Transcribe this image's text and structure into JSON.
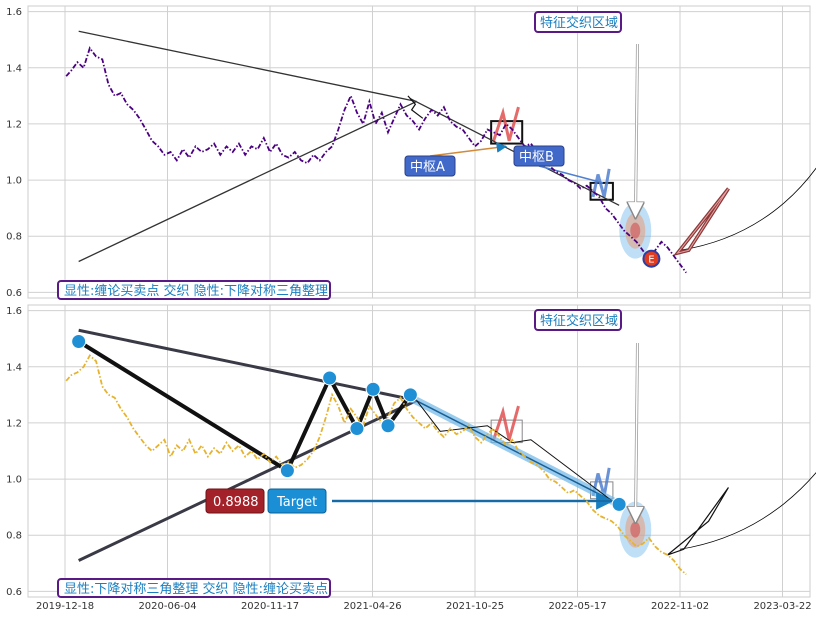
{
  "chart_data": [
    {
      "type": "line",
      "x_ticks": [
        "2019-12-18",
        "2020-06-04",
        "2020-11-17",
        "2021-04-26",
        "2021-10-25",
        "2022-05-17",
        "2022-11-02",
        "2023-03-22"
      ],
      "y_ticks": [
        "0.6",
        "0.8",
        "1.0",
        "1.2",
        "1.4",
        "1.6"
      ],
      "ylim": [
        0.58,
        1.62
      ],
      "grid": true,
      "series": [
        {
          "color": "#4b0082",
          "style": "dash-dot",
          "points": [
            [
              0.1,
              1.37
            ],
            [
              0.5,
              1.39
            ],
            [
              1,
              1.42
            ],
            [
              1.5,
              1.4
            ],
            [
              2,
              1.47
            ],
            [
              2.5,
              1.44
            ],
            [
              3,
              1.43
            ],
            [
              3.5,
              1.34
            ],
            [
              4,
              1.3
            ],
            [
              4.5,
              1.31
            ],
            [
              5,
              1.27
            ],
            [
              5.5,
              1.25
            ],
            [
              6,
              1.22
            ],
            [
              6.5,
              1.18
            ],
            [
              7,
              1.14
            ],
            [
              7.5,
              1.12
            ],
            [
              8,
              1.09
            ],
            [
              8.5,
              1.1
            ],
            [
              9,
              1.07
            ],
            [
              9.5,
              1.11
            ],
            [
              10,
              1.08
            ],
            [
              10.5,
              1.12
            ],
            [
              11,
              1.1
            ],
            [
              11.5,
              1.11
            ],
            [
              12,
              1.13
            ],
            [
              12.5,
              1.09
            ],
            [
              13,
              1.12
            ],
            [
              13.5,
              1.1
            ],
            [
              14,
              1.13
            ],
            [
              14.5,
              1.09
            ],
            [
              15,
              1.12
            ],
            [
              15.5,
              1.11
            ],
            [
              16,
              1.15
            ],
            [
              16.5,
              1.1
            ],
            [
              17,
              1.13
            ],
            [
              17.5,
              1.09
            ],
            [
              18,
              1.08
            ],
            [
              18.5,
              1.1
            ],
            [
              19,
              1.07
            ],
            [
              19.5,
              1.06
            ],
            [
              20,
              1.09
            ],
            [
              20.5,
              1.07
            ],
            [
              21,
              1.1
            ],
            [
              21.5,
              1.12
            ],
            [
              22,
              1.18
            ],
            [
              22.5,
              1.25
            ],
            [
              23,
              1.3
            ],
            [
              23.5,
              1.24
            ],
            [
              24,
              1.2
            ],
            [
              24.5,
              1.28
            ],
            [
              25,
              1.2
            ],
            [
              25.5,
              1.24
            ],
            [
              26,
              1.17
            ],
            [
              26.5,
              1.22
            ],
            [
              27,
              1.27
            ],
            [
              27.5,
              1.23
            ],
            [
              28,
              1.21
            ],
            [
              28.5,
              1.18
            ],
            [
              29,
              1.22
            ],
            [
              29.5,
              1.25
            ],
            [
              30,
              1.23
            ],
            [
              30.5,
              1.26
            ],
            [
              31,
              1.21
            ],
            [
              31.5,
              1.19
            ],
            [
              32,
              1.18
            ],
            [
              32.5,
              1.15
            ],
            [
              33,
              1.12
            ],
            [
              33.5,
              1.14
            ],
            [
              34,
              1.18
            ],
            [
              34.5,
              1.17
            ],
            [
              35,
              1.16
            ],
            [
              35.5,
              1.2
            ],
            [
              36,
              1.18
            ],
            [
              36.5,
              1.15
            ],
            [
              37,
              1.12
            ],
            [
              37.5,
              1.13
            ],
            [
              38,
              1.1
            ],
            [
              38.5,
              1.08
            ],
            [
              39,
              1.05
            ],
            [
              39.5,
              1.03
            ],
            [
              40,
              1.02
            ],
            [
              40.5,
              1.0
            ],
            [
              41,
              0.99
            ],
            [
              41.5,
              0.97
            ],
            [
              42,
              0.98
            ],
            [
              42.5,
              0.96
            ],
            [
              43,
              0.94
            ],
            [
              43.5,
              0.9
            ],
            [
              44,
              0.88
            ],
            [
              44.5,
              0.85
            ],
            [
              45,
              0.82
            ],
            [
              45.5,
              0.8
            ],
            [
              46,
              0.78
            ],
            [
              46.5,
              0.75
            ],
            [
              47,
              0.72
            ],
            [
              47.5,
              0.75
            ],
            [
              48,
              0.78
            ],
            [
              48.5,
              0.76
            ],
            [
              49,
              0.73
            ],
            [
              49.5,
              0.7
            ],
            [
              50,
              0.67
            ]
          ]
        }
      ],
      "annotations": [
        {
          "text": "显性:缠论买卖点 交织 隐性:下降对称三角整理",
          "kind": "caption-box"
        },
        {
          "text": "特征交织区域",
          "kind": "region-box",
          "target": [
            46.0,
            0.83
          ]
        },
        {
          "text": "中枢A",
          "kind": "label",
          "target": [
            35.5,
            1.16
          ]
        },
        {
          "text": "中枢B",
          "kind": "label",
          "target": [
            43.5,
            0.97
          ]
        },
        {
          "text": "E",
          "kind": "marker",
          "at": [
            47.2,
            0.72
          ]
        }
      ],
      "triangle": {
        "upper": [
          [
            1.1,
            1.53
          ],
          [
            28.3,
            1.28
          ]
        ],
        "lower": [
          [
            1.1,
            0.71
          ],
          [
            28.3,
            1.28
          ]
        ]
      },
      "pivots": [
        {
          "x1": 34.3,
          "x2": 36.8,
          "y1": 1.13,
          "y2": 1.21
        },
        {
          "x1": 42.3,
          "x2": 44.1,
          "y1": 0.93,
          "y2": 0.99
        }
      ],
      "red_wedge": [
        [
          49.3,
          0.74
        ],
        [
          51.8,
          0.88
        ],
        [
          53.4,
          0.97
        ],
        [
          50.2,
          0.75
        ]
      ],
      "forecast_curve": [
        [
          49.5,
          0.75
        ],
        [
          56.5,
          0.8
        ],
        [
          60.5,
          1.0
        ],
        [
          62.5,
          1.2
        ]
      ]
    },
    {
      "type": "line",
      "x_ticks": [
        "2019-12-18",
        "2020-06-04",
        "2020-11-17",
        "2021-04-26",
        "2021-10-25",
        "2022-05-17",
        "2022-11-02",
        "2023-03-22"
      ],
      "y_ticks": [
        "0.6",
        "0.8",
        "1.0",
        "1.2",
        "1.4",
        "1.6"
      ],
      "ylim": [
        0.58,
        1.62
      ],
      "grid": true,
      "series": [
        {
          "color": "#e6b32e",
          "style": "dash-dot",
          "points": [
            [
              0.1,
              1.35
            ],
            [
              0.5,
              1.37
            ],
            [
              1,
              1.38
            ],
            [
              1.5,
              1.4
            ],
            [
              2,
              1.44
            ],
            [
              2.5,
              1.42
            ],
            [
              3,
              1.33
            ],
            [
              3.5,
              1.3
            ],
            [
              4,
              1.29
            ],
            [
              4.5,
              1.25
            ],
            [
              5,
              1.22
            ],
            [
              5.5,
              1.18
            ],
            [
              6,
              1.15
            ],
            [
              6.5,
              1.12
            ],
            [
              7,
              1.1
            ],
            [
              7.5,
              1.12
            ],
            [
              8,
              1.14
            ],
            [
              8.5,
              1.08
            ],
            [
              9,
              1.12
            ],
            [
              9.5,
              1.1
            ],
            [
              10,
              1.14
            ],
            [
              10.5,
              1.09
            ],
            [
              11,
              1.12
            ],
            [
              11.5,
              1.08
            ],
            [
              12,
              1.11
            ],
            [
              12.5,
              1.09
            ],
            [
              13,
              1.13
            ],
            [
              13.5,
              1.1
            ],
            [
              14,
              1.12
            ],
            [
              14.5,
              1.08
            ],
            [
              15,
              1.1
            ],
            [
              15.5,
              1.07
            ],
            [
              16,
              1.09
            ],
            [
              16.5,
              1.06
            ],
            [
              17,
              1.08
            ],
            [
              17.5,
              1.05
            ],
            [
              18,
              1.06
            ],
            [
              18.5,
              1.04
            ],
            [
              19,
              1.05
            ],
            [
              19.5,
              1.07
            ],
            [
              20,
              1.1
            ],
            [
              20.5,
              1.15
            ],
            [
              21,
              1.22
            ],
            [
              21.5,
              1.3
            ],
            [
              22,
              1.26
            ],
            [
              22.5,
              1.2
            ],
            [
              23,
              1.25
            ],
            [
              23.5,
              1.22
            ],
            [
              24,
              1.19
            ],
            [
              24.5,
              1.26
            ],
            [
              25,
              1.23
            ],
            [
              25.5,
              1.2
            ],
            [
              26,
              1.22
            ],
            [
              26.5,
              1.27
            ],
            [
              27,
              1.29
            ],
            [
              27.5,
              1.25
            ],
            [
              28,
              1.22
            ],
            [
              28.5,
              1.2
            ],
            [
              29,
              1.18
            ],
            [
              29.5,
              1.2
            ],
            [
              30,
              1.17
            ],
            [
              30.5,
              1.15
            ],
            [
              31,
              1.18
            ],
            [
              31.5,
              1.16
            ],
            [
              32,
              1.17
            ],
            [
              32.5,
              1.19
            ],
            [
              33,
              1.15
            ],
            [
              33.5,
              1.13
            ],
            [
              34,
              1.16
            ],
            [
              34.5,
              1.18
            ],
            [
              35,
              1.15
            ],
            [
              35.5,
              1.12
            ],
            [
              36,
              1.14
            ],
            [
              36.5,
              1.1
            ],
            [
              37,
              1.08
            ],
            [
              37.5,
              1.06
            ],
            [
              38,
              1.05
            ],
            [
              38.5,
              1.03
            ],
            [
              39,
              1.0
            ],
            [
              39.5,
              0.99
            ],
            [
              40,
              0.97
            ],
            [
              40.5,
              0.95
            ],
            [
              41,
              0.96
            ],
            [
              41.5,
              0.94
            ],
            [
              42,
              0.92
            ],
            [
              42.5,
              0.89
            ],
            [
              43,
              0.87
            ],
            [
              43.5,
              0.86
            ],
            [
              44,
              0.85
            ],
            [
              44.5,
              0.83
            ],
            [
              45,
              0.8
            ],
            [
              45.5,
              0.78
            ],
            [
              46,
              0.76
            ],
            [
              46.5,
              0.77
            ],
            [
              47,
              0.79
            ],
            [
              47.5,
              0.76
            ],
            [
              48,
              0.74
            ],
            [
              48.5,
              0.73
            ],
            [
              49,
              0.71
            ],
            [
              49.5,
              0.68
            ],
            [
              50,
              0.66
            ]
          ]
        }
      ],
      "annotations": [
        {
          "text": "显性:下降对称三角整理 交织 隐性:缠论买卖点",
          "kind": "caption-box"
        },
        {
          "text": "特征交织区域",
          "kind": "region-box",
          "target": [
            46.0,
            0.81
          ]
        },
        {
          "text": "0.8988",
          "kind": "value-label"
        },
        {
          "text": "Target",
          "kind": "target-label",
          "target": [
            44.5,
            0.9
          ]
        }
      ],
      "triangle": {
        "upper": [
          [
            1.1,
            1.53
          ],
          [
            28.3,
            1.28
          ]
        ],
        "lower": [
          [
            1.1,
            0.71
          ],
          [
            28.3,
            1.28
          ]
        ]
      },
      "zigzag": [
        [
          1.1,
          1.49
        ],
        [
          17.9,
          1.03
        ],
        [
          21.3,
          1.36
        ],
        [
          23.5,
          1.18
        ],
        [
          24.8,
          1.32
        ],
        [
          26.0,
          1.19
        ],
        [
          27.8,
          1.3
        ],
        [
          44.6,
          0.91
        ]
      ],
      "pivots": [
        {
          "x1": 34.3,
          "x2": 36.8,
          "y1": 1.13,
          "y2": 1.21
        },
        {
          "x1": 42.3,
          "x2": 44.1,
          "y1": 0.93,
          "y2": 0.99
        }
      ],
      "black_wedge": [
        [
          48.5,
          0.73
        ],
        [
          51.8,
          0.85
        ],
        [
          53.4,
          0.97
        ],
        [
          49.8,
          0.75
        ]
      ],
      "forecast_curve": [
        [
          49.5,
          0.75
        ],
        [
          56.5,
          0.8
        ],
        [
          60.5,
          1.0
        ],
        [
          62.5,
          1.15
        ]
      ]
    }
  ]
}
